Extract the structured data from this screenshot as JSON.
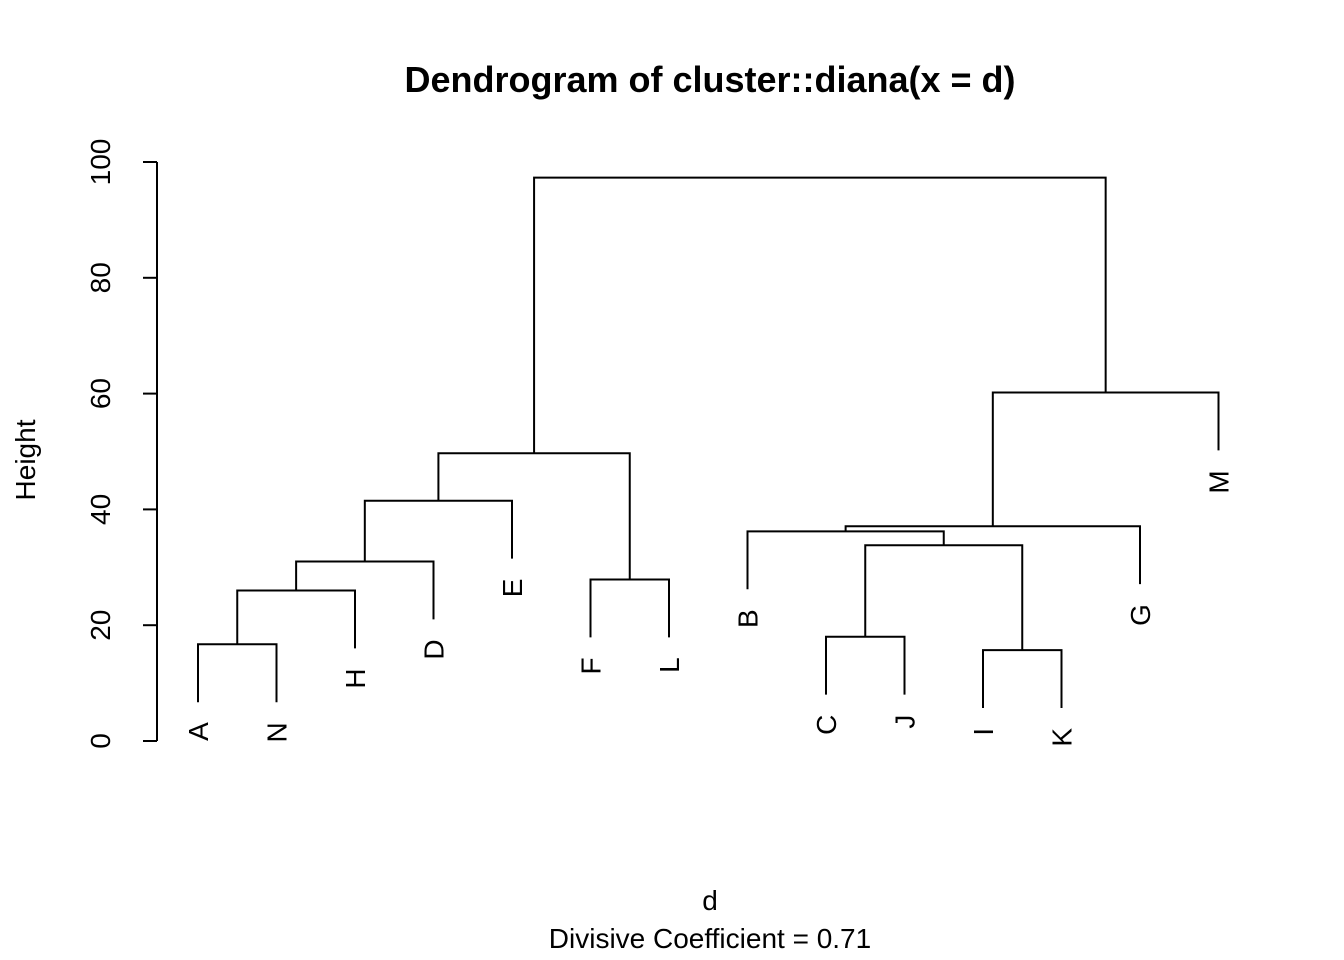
{
  "chart_data": {
    "type": "dendrogram",
    "title": "Dendrogram of  cluster::diana(x = d)",
    "xlabel": "d",
    "subtitle": "Divisive Coefficient =  0.71",
    "ylabel": "Height",
    "ylim": [
      0,
      100
    ],
    "yticks": [
      0,
      20,
      40,
      60,
      80,
      100
    ],
    "leaf_order": [
      "A",
      "N",
      "H",
      "D",
      "E",
      "F",
      "L",
      "B",
      "C",
      "J",
      "I",
      "K",
      "G",
      "M"
    ],
    "merges": [
      {
        "id": "m1",
        "left": "A",
        "right": "N",
        "height": 16.7
      },
      {
        "id": "m2",
        "left": "m1",
        "right": "H",
        "height": 26.0
      },
      {
        "id": "m3",
        "left": "m2",
        "right": "D",
        "height": 31.0
      },
      {
        "id": "m4",
        "left": "m3",
        "right": "E",
        "height": 41.5
      },
      {
        "id": "m5",
        "left": "F",
        "right": "L",
        "height": 27.9
      },
      {
        "id": "m6",
        "left": "m4",
        "right": "m5",
        "height": 49.7
      },
      {
        "id": "m7",
        "left": "C",
        "right": "J",
        "height": 18.0
      },
      {
        "id": "m8",
        "left": "I",
        "right": "K",
        "height": 15.7
      },
      {
        "id": "m9",
        "left": "m7",
        "right": "m8",
        "height": 33.8
      },
      {
        "id": "m10",
        "left": "B",
        "right": "m9",
        "height": 36.2
      },
      {
        "id": "m11",
        "left": "m10",
        "right": "G",
        "height": 37.1
      },
      {
        "id": "m12",
        "left": "m11",
        "right": "M",
        "height": 60.2
      },
      {
        "id": "m13",
        "left": "m6",
        "right": "m12",
        "height": 97.3
      }
    ]
  }
}
